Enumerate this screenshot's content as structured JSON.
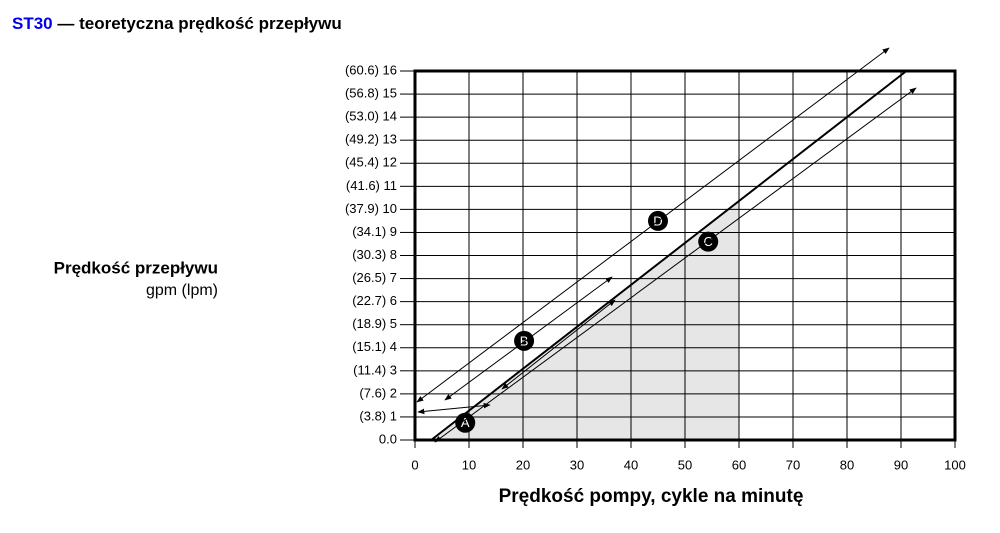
{
  "chart_data": {
    "type": "line",
    "title_prefix": "ST30",
    "title": "— teoretyczna prędkość przepływu",
    "title_prefix_color": "#0000ee",
    "y_label": "Prędkość przepływu",
    "y_label_units": "gpm (lpm)",
    "x_label": "Prędkość pompy, cykle na minutę",
    "xlim": [
      0,
      100
    ],
    "ylim": [
      0,
      16
    ],
    "xticks": [
      0,
      10,
      20,
      30,
      40,
      50,
      60,
      70,
      80,
      90,
      100
    ],
    "yticks": [
      {
        "value": 0,
        "label": "0.0"
      },
      {
        "value": 1,
        "label": "(3.8) 1"
      },
      {
        "value": 2,
        "label": "(7.6) 2"
      },
      {
        "value": 3,
        "label": "(11.4) 3"
      },
      {
        "value": 4,
        "label": "(15.1) 4"
      },
      {
        "value": 5,
        "label": "(18.9) 5"
      },
      {
        "value": 6,
        "label": "(22.7) 6"
      },
      {
        "value": 7,
        "label": "(26.5) 7"
      },
      {
        "value": 8,
        "label": "(30.3) 8"
      },
      {
        "value": 9,
        "label": "(34.1) 9"
      },
      {
        "value": 10,
        "label": "(37.9) 10"
      },
      {
        "value": 11,
        "label": "(41.6) 11"
      },
      {
        "value": 12,
        "label": "(45.4) 12"
      },
      {
        "value": 13,
        "label": "(49.2) 13"
      },
      {
        "value": 14,
        "label": "(53.0) 14"
      },
      {
        "value": 15,
        "label": "(56.8) 15"
      },
      {
        "value": 16,
        "label": "(60.6) 16"
      }
    ],
    "grid": true,
    "series": [
      {
        "color": "#000000",
        "x": [
          3,
          91
        ],
        "values": [
          0,
          16
        ]
      }
    ],
    "shaded_region": {
      "color": "#e6e6e6",
      "x": [
        3,
        60,
        60
      ],
      "values": [
        0,
        10.4,
        0
      ]
    },
    "annotations": [
      {
        "label": "A",
        "x": 9.3,
        "y": 0.75
      },
      {
        "label": "B",
        "x": 20.2,
        "y": 4.3
      },
      {
        "label": "C",
        "x": 54.3,
        "y": 8.6
      },
      {
        "label": "D",
        "x": 45.0,
        "y": 9.5
      }
    ]
  }
}
